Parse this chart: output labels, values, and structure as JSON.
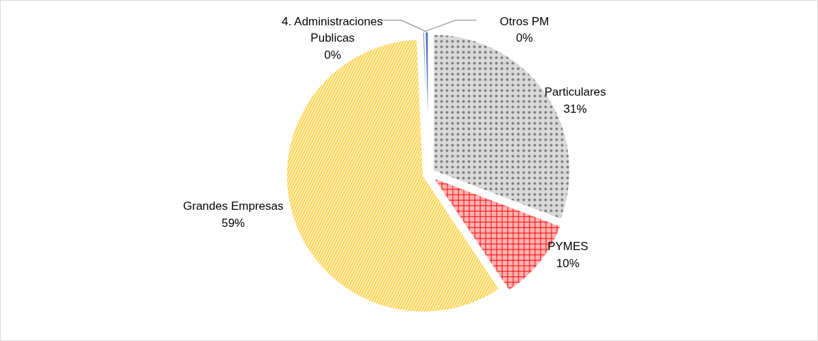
{
  "chart_data": {
    "type": "pie",
    "categories": [
      "Particulares",
      "PYMES",
      "Grandes Empresas",
      "Otros PM",
      "4. Administraciones Publicas"
    ],
    "values": [
      30.8,
      9.8,
      58.7,
      0.3,
      0.4
    ],
    "value_labels": [
      "31%",
      "10%",
      "59%",
      "0%",
      "0%"
    ],
    "colors": [
      "#808080",
      "#ff0000",
      "#ffc000",
      "#a5a5a5",
      "#4472c4"
    ]
  }
}
